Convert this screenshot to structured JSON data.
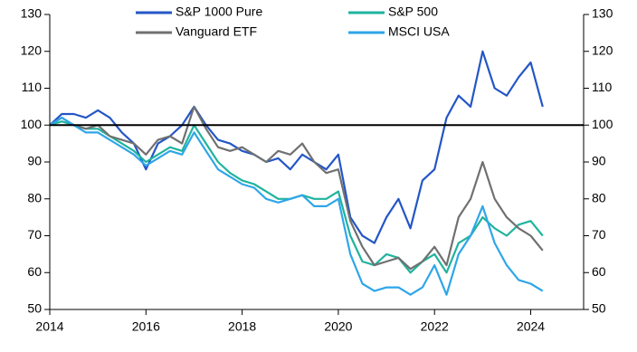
{
  "chart_data": {
    "type": "line",
    "x": [
      2014,
      2014.25,
      2014.5,
      2014.75,
      2015,
      2015.25,
      2015.5,
      2015.75,
      2016,
      2016.25,
      2016.5,
      2016.75,
      2017,
      2017.25,
      2017.5,
      2017.75,
      2018,
      2018.25,
      2018.5,
      2018.75,
      2019,
      2019.25,
      2019.5,
      2019.75,
      2020,
      2020.25,
      2020.5,
      2020.75,
      2021,
      2021.25,
      2021.5,
      2021.75,
      2022,
      2022.25,
      2022.5,
      2022.75,
      2023,
      2023.25,
      2023.5,
      2023.75,
      2024,
      2024.25
    ],
    "series": [
      {
        "name": "S&P 1000 Pure",
        "color": "#2456c6",
        "values": [
          100,
          103,
          103,
          102,
          104,
          102,
          98,
          95,
          88,
          95,
          97,
          100,
          105,
          100,
          96,
          95,
          93,
          92,
          90,
          91,
          88,
          92,
          90,
          88,
          92,
          75,
          70,
          68,
          75,
          80,
          72,
          85,
          88,
          102,
          108,
          105,
          120,
          110,
          108,
          113,
          117,
          105
        ]
      },
      {
        "name": "S&P 500",
        "color": "#20b39e",
        "values": [
          100,
          101,
          100,
          99,
          99,
          97,
          95,
          93,
          90,
          92,
          94,
          93,
          100,
          95,
          90,
          87,
          85,
          84,
          82,
          80,
          80,
          81,
          80,
          80,
          82,
          70,
          63,
          62,
          65,
          64,
          60,
          63,
          65,
          60,
          68,
          70,
          75,
          72,
          70,
          73,
          74,
          70
        ]
      },
      {
        "name": "Vanguard ETF",
        "color": "#707070",
        "values": [
          100,
          102,
          100,
          99,
          100,
          97,
          96,
          95,
          92,
          96,
          97,
          95,
          105,
          99,
          94,
          93,
          94,
          92,
          90,
          93,
          92,
          95,
          90,
          87,
          88,
          74,
          67,
          62,
          63,
          64,
          61,
          63,
          67,
          62,
          75,
          80,
          90,
          80,
          75,
          72,
          70,
          66
        ]
      },
      {
        "name": "MSCI USA",
        "color": "#2ea6e8",
        "values": [
          100,
          102,
          100,
          98,
          98,
          96,
          94,
          92,
          89,
          91,
          93,
          92,
          98,
          93,
          88,
          86,
          84,
          83,
          80,
          79,
          80,
          81,
          78,
          78,
          80,
          65,
          57,
          55,
          56,
          56,
          54,
          56,
          62,
          54,
          65,
          70,
          78,
          68,
          62,
          58,
          57,
          55
        ]
      }
    ],
    "xlim": [
      2014,
      2025.1
    ],
    "xticks": [
      2014,
      2016,
      2018,
      2020,
      2022,
      2024
    ],
    "ylim": [
      50,
      130
    ],
    "yticks": [
      50,
      60,
      70,
      80,
      90,
      100,
      110,
      120,
      130
    ],
    "y2lim": [
      50,
      130
    ],
    "y2ticks": [
      50,
      60,
      70,
      80,
      90,
      100,
      110,
      120,
      130
    ],
    "hline": 100,
    "legend": "top"
  }
}
